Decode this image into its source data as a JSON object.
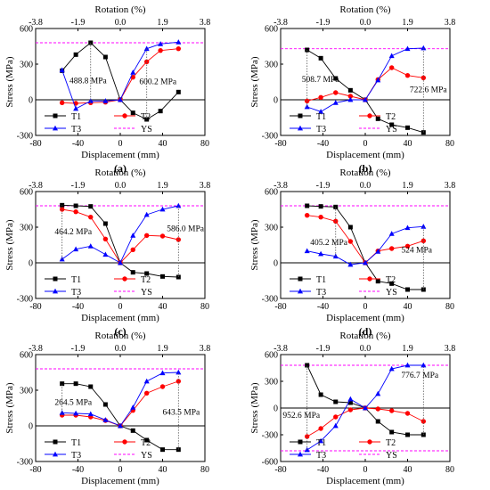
{
  "figure": {
    "top_axis_label": "Rotation (%)",
    "bottom_axis_label": "Displacement (mm)",
    "y_axis_label": "Stress (MPa)",
    "legend_labels": [
      "T1",
      "T2",
      "T3",
      "YS"
    ],
    "colors": {
      "T1": "#000000",
      "T2": "#ff0000",
      "T3": "#0000ff",
      "YS": "#ff00ff"
    }
  },
  "chart_data": [
    {
      "type": "line",
      "panel_label": "(a)",
      "xlim": [
        -80,
        80
      ],
      "ylim": [
        -300,
        600
      ],
      "x_ticks": [
        "-80",
        "-40",
        "0",
        "40",
        "80"
      ],
      "y_ticks": [
        "-300",
        "0",
        "300",
        "600"
      ],
      "top_ticks": [
        "-3.8",
        "-1.9",
        "0.0",
        "1.9",
        "3.8"
      ],
      "yield_stress": 480,
      "series": [
        {
          "name": "T1",
          "x": [
            -55,
            -42,
            -28,
            -14,
            0,
            12,
            25,
            38,
            55
          ],
          "y": [
            245,
            380,
            480,
            360,
            0,
            -110,
            -165,
            -95,
            65
          ]
        },
        {
          "name": "T2",
          "x": [
            -55,
            -42,
            -28,
            -14,
            0,
            12,
            25,
            38,
            55
          ],
          "y": [
            -25,
            -30,
            -25,
            -20,
            0,
            190,
            320,
            415,
            430
          ]
        },
        {
          "name": "T3",
          "x": [
            -55,
            -42,
            -28,
            -14,
            0,
            12,
            25,
            38,
            55
          ],
          "y": [
            250,
            -75,
            -10,
            -10,
            0,
            230,
            430,
            470,
            485
          ]
        }
      ],
      "annotations": [
        {
          "text": "488.8 MPa",
          "x": -48,
          "y": 140,
          "bracket_x": -28,
          "bracket_y": [
            -25,
            480
          ]
        },
        {
          "text": "600.2 MPa",
          "x": 18,
          "y": 130,
          "bracket_x": 25,
          "bracket_y": [
            -165,
            430
          ]
        }
      ]
    },
    {
      "type": "line",
      "panel_label": "(b)",
      "xlim": [
        -80,
        80
      ],
      "ylim": [
        -300,
        600
      ],
      "x_ticks": [
        "-80",
        "-40",
        "0",
        "40",
        "80"
      ],
      "y_ticks": [
        "-300",
        "0",
        "300",
        "600"
      ],
      "top_ticks": [
        "-3.8",
        "-1.9",
        "0.0",
        "1.9",
        "3.8"
      ],
      "yield_stress": 430,
      "series": [
        {
          "name": "T1",
          "x": [
            -55,
            -42,
            -28,
            -14,
            0,
            12,
            25,
            40,
            55
          ],
          "y": [
            420,
            350,
            180,
            80,
            0,
            -160,
            -210,
            -235,
            -275
          ]
        },
        {
          "name": "T2",
          "x": [
            -55,
            -42,
            -28,
            -14,
            0,
            12,
            25,
            40,
            55
          ],
          "y": [
            -10,
            20,
            60,
            30,
            0,
            170,
            270,
            205,
            185
          ]
        },
        {
          "name": "T3",
          "x": [
            -55,
            -42,
            -28,
            -14,
            0,
            12,
            25,
            40,
            55
          ],
          "y": [
            -60,
            -100,
            -25,
            0,
            0,
            165,
            370,
            430,
            435
          ]
        }
      ],
      "annotations": [
        {
          "text": "508.7 MPa",
          "x": -60,
          "y": 150,
          "bracket_x": -55,
          "bracket_y": [
            -60,
            420
          ]
        },
        {
          "text": "722.6 MPa",
          "x": 42,
          "y": 65,
          "bracket_x": 55,
          "bracket_y": [
            -275,
            435
          ]
        }
      ]
    },
    {
      "type": "line",
      "panel_label": "(c)",
      "xlim": [
        -80,
        80
      ],
      "ylim": [
        -300,
        600
      ],
      "x_ticks": [
        "-80",
        "-40",
        "0",
        "40",
        "80"
      ],
      "y_ticks": [
        "-300",
        "0",
        "300",
        "600"
      ],
      "top_ticks": [
        "-3.8",
        "-1.9",
        "0.0",
        "1.9",
        "3.8"
      ],
      "yield_stress": 480,
      "series": [
        {
          "name": "T1",
          "x": [
            -55,
            -42,
            -28,
            -14,
            0,
            12,
            25,
            40,
            55
          ],
          "y": [
            485,
            480,
            475,
            330,
            0,
            -80,
            -90,
            -115,
            -120
          ]
        },
        {
          "name": "T2",
          "x": [
            -55,
            -42,
            -28,
            -14,
            0,
            12,
            25,
            40,
            55
          ],
          "y": [
            450,
            430,
            385,
            200,
            0,
            110,
            230,
            225,
            195
          ]
        },
        {
          "name": "T3",
          "x": [
            -55,
            -42,
            -28,
            -14,
            0,
            12,
            25,
            40,
            55
          ],
          "y": [
            30,
            115,
            140,
            70,
            0,
            230,
            405,
            450,
            480
          ]
        }
      ],
      "annotations": [
        {
          "text": "464.2 MPa",
          "x": -62,
          "y": 240,
          "bracket_x": -55,
          "bracket_y": [
            30,
            485
          ]
        },
        {
          "text": "586.0 MPa",
          "x": 44,
          "y": 265,
          "bracket_x": 55,
          "bracket_y": [
            -120,
            480
          ]
        }
      ]
    },
    {
      "type": "line",
      "panel_label": "(d)",
      "xlim": [
        -80,
        80
      ],
      "ylim": [
        -300,
        600
      ],
      "x_ticks": [
        "-80",
        "-40",
        "0",
        "40",
        "80"
      ],
      "y_ticks": [
        "-300",
        "0",
        "300",
        "600"
      ],
      "top_ticks": [
        "-3.8",
        "-1.9",
        "0.0",
        "1.9",
        "3.8"
      ],
      "yield_stress": 480,
      "series": [
        {
          "name": "T1",
          "x": [
            -55,
            -42,
            -28,
            -14,
            0,
            12,
            25,
            40,
            55
          ],
          "y": [
            480,
            475,
            470,
            300,
            0,
            -155,
            -175,
            -225,
            -225
          ]
        },
        {
          "name": "T2",
          "x": [
            -55,
            -42,
            -28,
            -14,
            0,
            12,
            25,
            40,
            55
          ],
          "y": [
            400,
            385,
            350,
            180,
            0,
            100,
            120,
            140,
            185
          ]
        },
        {
          "name": "T3",
          "x": [
            -55,
            -42,
            -28,
            -14,
            0,
            12,
            25,
            40,
            55
          ],
          "y": [
            100,
            75,
            55,
            -15,
            0,
            95,
            245,
            295,
            305
          ]
        }
      ],
      "annotations": [
        {
          "text": "405.2 MPa",
          "x": -52,
          "y": 150,
          "bracket_x": -28,
          "bracket_y": [
            55,
            470
          ]
        },
        {
          "text": "524 MPa",
          "x": 34,
          "y": 85,
          "bracket_x": 55,
          "bracket_y": [
            -225,
            305
          ]
        }
      ]
    },
    {
      "type": "line",
      "panel_label": "(e)",
      "xlim": [
        -80,
        80
      ],
      "ylim": [
        -300,
        600
      ],
      "x_ticks": [
        "-80",
        "-40",
        "0",
        "40",
        "80"
      ],
      "y_ticks": [
        "-300",
        "0",
        "300",
        "600"
      ],
      "top_ticks": [
        "-3.8",
        "-1.9",
        "0.0",
        "1.9",
        "3.8"
      ],
      "yield_stress": 480,
      "series": [
        {
          "name": "T1",
          "x": [
            -55,
            -42,
            -28,
            -14,
            0,
            12,
            25,
            40,
            55
          ],
          "y": [
            355,
            355,
            330,
            180,
            0,
            -40,
            -120,
            -200,
            -200
          ]
        },
        {
          "name": "T2",
          "x": [
            -55,
            -42,
            -28,
            -14,
            0,
            12,
            25,
            40,
            55
          ],
          "y": [
            90,
            90,
            75,
            45,
            0,
            130,
            275,
            330,
            375
          ]
        },
        {
          "name": "T3",
          "x": [
            -55,
            -42,
            -28,
            -14,
            0,
            12,
            25,
            40,
            55
          ],
          "y": [
            110,
            105,
            100,
            50,
            0,
            155,
            375,
            445,
            450
          ]
        }
      ],
      "annotations": [
        {
          "text": "264.5 MPa",
          "x": -62,
          "y": 175,
          "bracket_x": -55,
          "bracket_y": [
            90,
            355
          ]
        },
        {
          "text": "643.5 MPa",
          "x": 40,
          "y": 95,
          "bracket_x": 55,
          "bracket_y": [
            -200,
            450
          ]
        }
      ]
    },
    {
      "type": "line",
      "panel_label": "(f)",
      "xlim": [
        -80,
        80
      ],
      "ylim": [
        -600,
        600
      ],
      "x_ticks": [
        "-80",
        "-40",
        "0",
        "40",
        "80"
      ],
      "y_ticks": [
        "-600",
        "-300",
        "0",
        "300",
        "600"
      ],
      "top_ticks": [
        "-3.8",
        "-1.9",
        "0.0",
        "1.9",
        "3.8"
      ],
      "yield_stress": 480,
      "yield_stress_negative": -480,
      "series": [
        {
          "name": "T1",
          "x": [
            -55,
            -42,
            -28,
            -14,
            0,
            12,
            25,
            40,
            55
          ],
          "y": [
            480,
            150,
            70,
            60,
            0,
            -150,
            -270,
            -300,
            -300
          ]
        },
        {
          "name": "T2",
          "x": [
            -55,
            -42,
            -28,
            -14,
            0,
            12,
            25,
            40,
            55
          ],
          "y": [
            -320,
            -230,
            -100,
            -20,
            0,
            -10,
            -30,
            -60,
            -150
          ]
        },
        {
          "name": "T3",
          "x": [
            -55,
            -42,
            -28,
            -14,
            0,
            12,
            25,
            40,
            55
          ],
          "y": [
            -470,
            -370,
            -200,
            100,
            0,
            160,
            440,
            480,
            480
          ]
        }
      ],
      "annotations": [
        {
          "text": "952.6 MPa",
          "x": -78,
          "y": -110,
          "bracket_x": -55,
          "bracket_y": [
            -470,
            480
          ]
        },
        {
          "text": "776.7 MPa",
          "x": 34,
          "y": 340,
          "bracket_x": 55,
          "bracket_y": [
            -300,
            480
          ]
        }
      ]
    }
  ]
}
